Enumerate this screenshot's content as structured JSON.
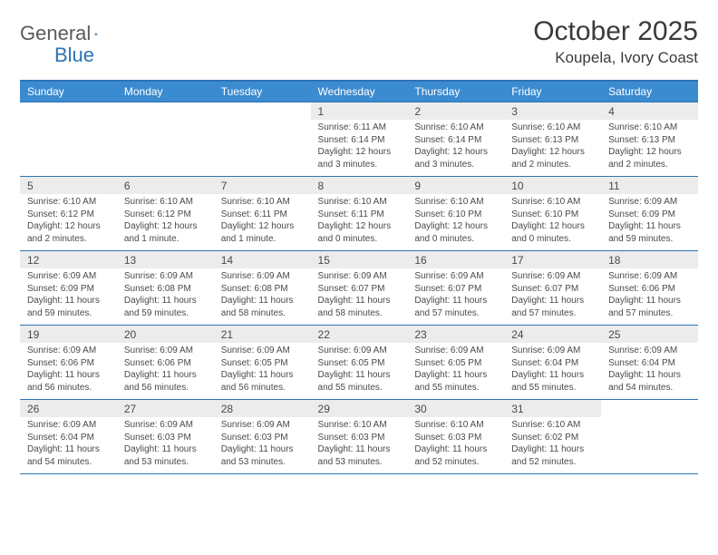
{
  "logo": {
    "general": "General",
    "blue": "Blue"
  },
  "title": "October 2025",
  "location": "Koupela, Ivory Coast",
  "colors": {
    "header_bg": "#3b8bd0",
    "border": "#2e74b5",
    "daynum_bg": "#ececec",
    "text": "#4a4a4a",
    "logo_gray": "#5a5a5a",
    "logo_blue": "#2e74b5"
  },
  "day_headers": [
    "Sunday",
    "Monday",
    "Tuesday",
    "Wednesday",
    "Thursday",
    "Friday",
    "Saturday"
  ],
  "weeks": [
    [
      null,
      null,
      null,
      {
        "n": "1",
        "sr": "6:11 AM",
        "ss": "6:14 PM",
        "dl": "12 hours and 3 minutes."
      },
      {
        "n": "2",
        "sr": "6:10 AM",
        "ss": "6:14 PM",
        "dl": "12 hours and 3 minutes."
      },
      {
        "n": "3",
        "sr": "6:10 AM",
        "ss": "6:13 PM",
        "dl": "12 hours and 2 minutes."
      },
      {
        "n": "4",
        "sr": "6:10 AM",
        "ss": "6:13 PM",
        "dl": "12 hours and 2 minutes."
      }
    ],
    [
      {
        "n": "5",
        "sr": "6:10 AM",
        "ss": "6:12 PM",
        "dl": "12 hours and 2 minutes."
      },
      {
        "n": "6",
        "sr": "6:10 AM",
        "ss": "6:12 PM",
        "dl": "12 hours and 1 minute."
      },
      {
        "n": "7",
        "sr": "6:10 AM",
        "ss": "6:11 PM",
        "dl": "12 hours and 1 minute."
      },
      {
        "n": "8",
        "sr": "6:10 AM",
        "ss": "6:11 PM",
        "dl": "12 hours and 0 minutes."
      },
      {
        "n": "9",
        "sr": "6:10 AM",
        "ss": "6:10 PM",
        "dl": "12 hours and 0 minutes."
      },
      {
        "n": "10",
        "sr": "6:10 AM",
        "ss": "6:10 PM",
        "dl": "12 hours and 0 minutes."
      },
      {
        "n": "11",
        "sr": "6:09 AM",
        "ss": "6:09 PM",
        "dl": "11 hours and 59 minutes."
      }
    ],
    [
      {
        "n": "12",
        "sr": "6:09 AM",
        "ss": "6:09 PM",
        "dl": "11 hours and 59 minutes."
      },
      {
        "n": "13",
        "sr": "6:09 AM",
        "ss": "6:08 PM",
        "dl": "11 hours and 59 minutes."
      },
      {
        "n": "14",
        "sr": "6:09 AM",
        "ss": "6:08 PM",
        "dl": "11 hours and 58 minutes."
      },
      {
        "n": "15",
        "sr": "6:09 AM",
        "ss": "6:07 PM",
        "dl": "11 hours and 58 minutes."
      },
      {
        "n": "16",
        "sr": "6:09 AM",
        "ss": "6:07 PM",
        "dl": "11 hours and 57 minutes."
      },
      {
        "n": "17",
        "sr": "6:09 AM",
        "ss": "6:07 PM",
        "dl": "11 hours and 57 minutes."
      },
      {
        "n": "18",
        "sr": "6:09 AM",
        "ss": "6:06 PM",
        "dl": "11 hours and 57 minutes."
      }
    ],
    [
      {
        "n": "19",
        "sr": "6:09 AM",
        "ss": "6:06 PM",
        "dl": "11 hours and 56 minutes."
      },
      {
        "n": "20",
        "sr": "6:09 AM",
        "ss": "6:06 PM",
        "dl": "11 hours and 56 minutes."
      },
      {
        "n": "21",
        "sr": "6:09 AM",
        "ss": "6:05 PM",
        "dl": "11 hours and 56 minutes."
      },
      {
        "n": "22",
        "sr": "6:09 AM",
        "ss": "6:05 PM",
        "dl": "11 hours and 55 minutes."
      },
      {
        "n": "23",
        "sr": "6:09 AM",
        "ss": "6:05 PM",
        "dl": "11 hours and 55 minutes."
      },
      {
        "n": "24",
        "sr": "6:09 AM",
        "ss": "6:04 PM",
        "dl": "11 hours and 55 minutes."
      },
      {
        "n": "25",
        "sr": "6:09 AM",
        "ss": "6:04 PM",
        "dl": "11 hours and 54 minutes."
      }
    ],
    [
      {
        "n": "26",
        "sr": "6:09 AM",
        "ss": "6:04 PM",
        "dl": "11 hours and 54 minutes."
      },
      {
        "n": "27",
        "sr": "6:09 AM",
        "ss": "6:03 PM",
        "dl": "11 hours and 53 minutes."
      },
      {
        "n": "28",
        "sr": "6:09 AM",
        "ss": "6:03 PM",
        "dl": "11 hours and 53 minutes."
      },
      {
        "n": "29",
        "sr": "6:10 AM",
        "ss": "6:03 PM",
        "dl": "11 hours and 53 minutes."
      },
      {
        "n": "30",
        "sr": "6:10 AM",
        "ss": "6:03 PM",
        "dl": "11 hours and 52 minutes."
      },
      {
        "n": "31",
        "sr": "6:10 AM",
        "ss": "6:02 PM",
        "dl": "11 hours and 52 minutes."
      },
      null
    ]
  ],
  "labels": {
    "sunrise": "Sunrise:",
    "sunset": "Sunset:",
    "daylight": "Daylight:"
  }
}
